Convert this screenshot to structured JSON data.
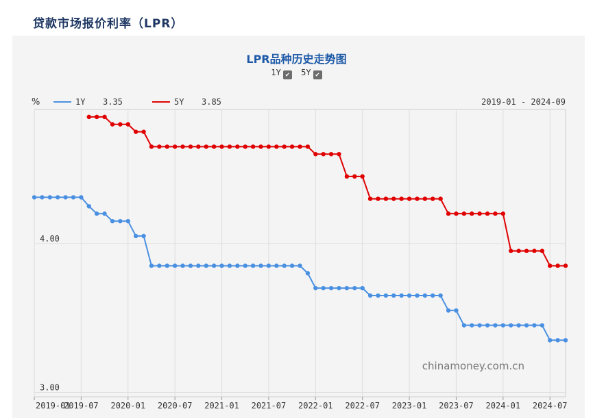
{
  "page": {
    "title": "贷款市场报价利率（LPR）"
  },
  "chart_header": {
    "title": "LPR品种历史走势图",
    "toggles": [
      {
        "label": "1Y",
        "checked": true
      },
      {
        "label": "5Y",
        "checked": true
      }
    ],
    "unit": "%",
    "range": "2019-01 - 2024-09"
  },
  "watermark": "chinamoney.com.cn",
  "colors": {
    "series_1y": "#4a90e2",
    "series_5y": "#e00000",
    "grid": "#dddddd",
    "title": "#1e5aa8"
  },
  "chart_data": {
    "type": "line",
    "ylim": [
      2.97,
      4.9
    ],
    "y_ticks": [
      {
        "value": 3.0,
        "label": "3.00"
      },
      {
        "value": 4.0,
        "label": "4.00"
      }
    ],
    "x_ticks": [
      "2019-01",
      "2019-07",
      "2020-01",
      "2020-07",
      "2021-01",
      "2021-07",
      "2022-01",
      "2022-07",
      "2023-01",
      "2023-07",
      "2024-01",
      "2024-07"
    ],
    "series": [
      {
        "name": "1Y",
        "legend_value": "3.35",
        "values": [
          {
            "start": "2019-01",
            "end": "2019-07",
            "value": 4.31
          },
          {
            "start": "2019-08",
            "end": "2019-08",
            "value": 4.25
          },
          {
            "start": "2019-09",
            "end": "2019-10",
            "value": 4.2
          },
          {
            "start": "2019-11",
            "end": "2020-01",
            "value": 4.15
          },
          {
            "start": "2020-02",
            "end": "2020-03",
            "value": 4.05
          },
          {
            "start": "2020-04",
            "end": "2021-11",
            "value": 3.85
          },
          {
            "start": "2021-12",
            "end": "2021-12",
            "value": 3.8
          },
          {
            "start": "2022-01",
            "end": "2022-07",
            "value": 3.7
          },
          {
            "start": "2022-08",
            "end": "2023-05",
            "value": 3.65
          },
          {
            "start": "2023-06",
            "end": "2023-07",
            "value": 3.55
          },
          {
            "start": "2023-08",
            "end": "2024-06",
            "value": 3.45
          },
          {
            "start": "2024-07",
            "end": "2024-09",
            "value": 3.35
          }
        ]
      },
      {
        "name": "5Y",
        "legend_value": "3.85",
        "values": [
          {
            "start": "2019-08",
            "end": "2019-10",
            "value": 4.85
          },
          {
            "start": "2019-11",
            "end": "2020-01",
            "value": 4.8
          },
          {
            "start": "2020-02",
            "end": "2020-03",
            "value": 4.75
          },
          {
            "start": "2020-04",
            "end": "2021-12",
            "value": 4.65
          },
          {
            "start": "2022-01",
            "end": "2022-04",
            "value": 4.6
          },
          {
            "start": "2022-05",
            "end": "2022-07",
            "value": 4.45
          },
          {
            "start": "2022-08",
            "end": "2023-05",
            "value": 4.3
          },
          {
            "start": "2023-06",
            "end": "2024-01",
            "value": 4.2
          },
          {
            "start": "2024-02",
            "end": "2024-06",
            "value": 3.95
          },
          {
            "start": "2024-07",
            "end": "2024-09",
            "value": 3.85
          }
        ]
      }
    ]
  }
}
